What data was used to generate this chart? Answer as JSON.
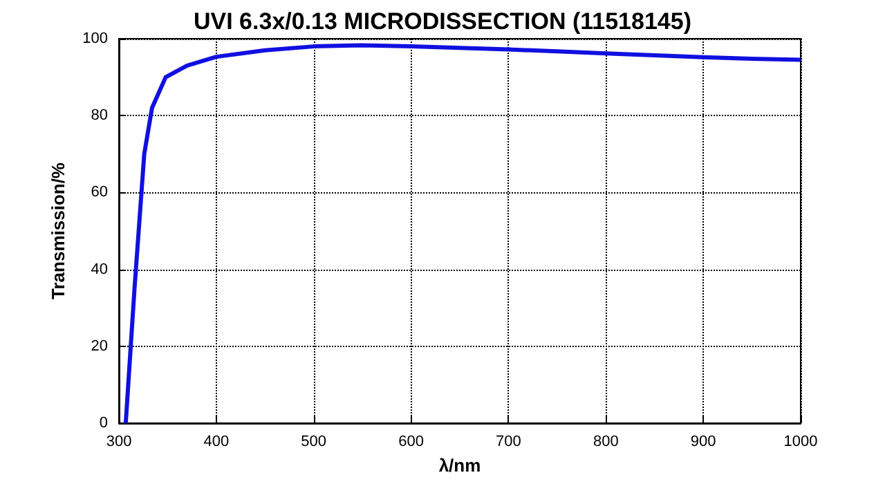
{
  "chart_data": {
    "type": "line",
    "title": "UVI 6.3x/0.13 MICRODISSECTION (11518145)",
    "xlabel": "λ/nm",
    "ylabel": "Transmission/%",
    "series": [
      {
        "color": "#1010e0",
        "x": [
          307,
          316,
          326,
          334,
          348,
          370,
          400,
          450,
          500,
          550,
          600,
          650,
          700,
          750,
          800,
          850,
          900,
          950,
          1000
        ],
        "values": [
          0,
          35,
          70,
          82,
          90,
          93,
          95.3,
          97,
          98,
          98.3,
          98,
          97.6,
          97.2,
          96.7,
          96.2,
          95.7,
          95.2,
          94.8,
          94.5
        ]
      }
    ],
    "xlim": [
      300,
      1000
    ],
    "xticks": [
      300,
      400,
      500,
      600,
      700,
      800,
      900,
      1000
    ],
    "ylim": [
      0,
      100
    ],
    "yticks": [
      0,
      20,
      40,
      60,
      80,
      100
    ],
    "grid": true,
    "line_style": "solid",
    "marker": "none"
  }
}
